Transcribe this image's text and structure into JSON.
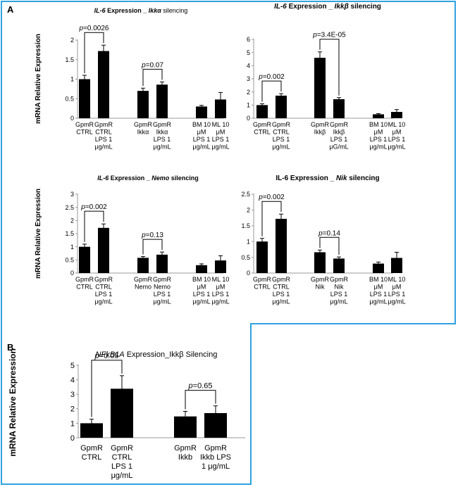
{
  "panel_labels": {
    "a": "A",
    "b": "B"
  },
  "chart_data": [
    {
      "id": "a1",
      "type": "bar",
      "title_parts": [
        {
          "t": "IL-6",
          "i": true,
          "b": true
        },
        {
          "t": " Expression _ ",
          "i": false,
          "b": true
        },
        {
          "t": "Ikkα",
          "i": true,
          "b": true
        },
        {
          "t": " silencing",
          "i": false,
          "b": false
        }
      ],
      "ylabel": "mRNA Relative Expression",
      "ylim": [
        0,
        2
      ],
      "yticks": [
        0,
        0.5,
        1,
        1.5,
        2
      ],
      "ytick_labels": [
        "0",
        "0.5",
        "1",
        "1.5",
        "2"
      ],
      "categories": [
        [
          "GpmR",
          "CTRL"
        ],
        [
          "GpmR",
          "CTRL",
          "LPS 1",
          "μg/mL"
        ],
        [
          "GpmR",
          "Ikkα"
        ],
        [
          "GpmR",
          "Ikkα",
          "LPS 1",
          "μg/mL"
        ],
        [
          "BM 10",
          "μM",
          "LPS 1",
          "μg/mL"
        ],
        [
          "ML 10",
          "μM",
          "LPS 1",
          "μg/mL"
        ]
      ],
      "values": [
        1.0,
        1.72,
        0.7,
        0.86,
        0.3,
        0.48
      ],
      "errors": [
        0.1,
        0.15,
        0.07,
        0.07,
        0.03,
        0.18
      ],
      "annotations": [
        {
          "text": "p=0.0026",
          "pair": [
            0,
            1
          ]
        },
        {
          "text": "p=0.07",
          "pair": [
            2,
            3
          ]
        }
      ]
    },
    {
      "id": "a2",
      "type": "bar",
      "title_parts": [
        {
          "t": "IL-6",
          "i": true,
          "b": true
        },
        {
          "t": " Expression _ ",
          "i": false,
          "b": true
        },
        {
          "t": "Ikkβ",
          "i": true,
          "b": true
        },
        {
          "t": " silencing",
          "i": false,
          "b": true
        }
      ],
      "ylabel": "",
      "ylim": [
        0,
        6
      ],
      "yticks": [
        0,
        1,
        2,
        3,
        4,
        5,
        6
      ],
      "ytick_labels": [
        "0",
        "1",
        "2",
        "3",
        "4",
        "5",
        "6"
      ],
      "categories": [
        [
          "GpmR",
          "CTRL"
        ],
        [
          "GpmR",
          "CTRL",
          "LPS 1",
          "μg/mL"
        ],
        [
          "GpmR",
          "Ikkβ"
        ],
        [
          "GpmR",
          "Ikkβ",
          "LPS 1",
          "μG/mL"
        ],
        [
          "BM 10",
          "μM",
          "LPS 1",
          "μg/mL"
        ],
        [
          "ML 10",
          "μM",
          "LPS 1",
          "μg/mL"
        ]
      ],
      "values": [
        1.0,
        1.72,
        4.6,
        1.45,
        0.3,
        0.48
      ],
      "errors": [
        0.1,
        0.15,
        0.45,
        0.12,
        0.05,
        0.18
      ],
      "annotations": [
        {
          "text": "p=0.002",
          "pair": [
            0,
            1
          ]
        },
        {
          "text": "p=3.4E-05",
          "pair": [
            2,
            3
          ]
        }
      ]
    },
    {
      "id": "a3",
      "type": "bar",
      "title_parts": [
        {
          "t": "IL-6",
          "i": true,
          "b": true
        },
        {
          "t": " Expression _ ",
          "i": false,
          "b": true
        },
        {
          "t": "Nemo",
          "i": true,
          "b": true
        },
        {
          "t": " silencing",
          "i": false,
          "b": true
        }
      ],
      "ylabel": "mRNA Relative Expression",
      "ylim": [
        0,
        3
      ],
      "yticks": [
        0,
        0.5,
        1,
        1.5,
        2,
        2.5,
        3
      ],
      "ytick_labels": [
        "0",
        "0.5",
        "1",
        "1.5",
        "2",
        "2.5",
        "3"
      ],
      "categories": [
        [
          "GpmR",
          "CTRL"
        ],
        [
          "GpmR",
          "CTRL",
          "LPS 1",
          "μg/mL"
        ],
        [
          "GpmR",
          "Nemo"
        ],
        [
          "GpmR",
          "Nemo",
          "LPS 1",
          "μg/mL"
        ],
        [
          "BM 10",
          "μM",
          "LPS 1",
          "μg/mL"
        ],
        [
          "ML 10",
          "μM",
          "LPS 1",
          "μg/mL"
        ]
      ],
      "values": [
        1.0,
        1.72,
        0.58,
        0.7,
        0.3,
        0.48
      ],
      "errors": [
        0.1,
        0.15,
        0.05,
        0.1,
        0.05,
        0.18
      ],
      "annotations": [
        {
          "text": "p=0.002",
          "pair": [
            0,
            1
          ]
        },
        {
          "text": "p=0.13",
          "pair": [
            2,
            3
          ]
        }
      ]
    },
    {
      "id": "a4",
      "type": "bar",
      "title_parts": [
        {
          "t": "IL-6 Expression _ ",
          "i": false,
          "b": true
        },
        {
          "t": "Nik",
          "i": true,
          "b": true
        },
        {
          "t": " silencing",
          "i": false,
          "b": true
        }
      ],
      "ylabel": "",
      "ylim": [
        0,
        2.5
      ],
      "yticks": [
        0,
        0.5,
        1,
        1.5,
        2,
        2.5
      ],
      "ytick_labels": [
        "0",
        "0.5",
        "1",
        "1.5",
        "2",
        "2.5"
      ],
      "categories": [
        [
          "GpmR",
          "CTRL"
        ],
        [
          "GpmR",
          "CTRL",
          "LPS 1",
          "μg/mL"
        ],
        [
          "GpmR",
          "Nik"
        ],
        [
          "GpmR",
          "Nik",
          "LPS 1",
          "μg/mL"
        ],
        [
          "BM 10",
          "μM",
          "LPS 1",
          "μg/mL"
        ],
        [
          "ML 10",
          "μM",
          "LPS 1",
          "μg/mL"
        ]
      ],
      "values": [
        1.0,
        1.72,
        0.66,
        0.46,
        0.3,
        0.48
      ],
      "errors": [
        0.1,
        0.15,
        0.07,
        0.05,
        0.05,
        0.18
      ],
      "annotations": [
        {
          "text": "p=0.002",
          "pair": [
            0,
            1
          ]
        },
        {
          "text": "p=0.14",
          "pair": [
            2,
            3
          ]
        }
      ]
    },
    {
      "id": "b1",
      "type": "bar",
      "title_parts": [
        {
          "t": "NFkB1A",
          "i": true,
          "b": false
        },
        {
          "t": " Expression_Ikkβ Silencing",
          "i": false,
          "b": false
        }
      ],
      "ylabel": "mRNA Relative Expression",
      "ylim": [
        0,
        5
      ],
      "yticks": [
        0,
        1,
        2,
        3,
        4,
        5
      ],
      "ytick_labels": [
        "0",
        "1",
        "2",
        "3",
        "4",
        "5"
      ],
      "categories": [
        [
          "GpmR",
          "CTRL"
        ],
        [
          "GpmR",
          "CTRL",
          "LPS 1",
          "μg/mL"
        ],
        [
          "GpmR",
          "Ikkb"
        ],
        [
          "GpmR",
          "Ikkb LPS",
          "1 μg/mL"
        ]
      ],
      "values": [
        1.0,
        3.38,
        1.47,
        1.7
      ],
      "errors": [
        0.28,
        0.9,
        0.35,
        0.5
      ],
      "annotations": [
        {
          "text": "p=0.05",
          "pair": [
            0,
            1
          ]
        },
        {
          "text": "p=0.65",
          "pair": [
            2,
            3
          ]
        }
      ]
    }
  ]
}
